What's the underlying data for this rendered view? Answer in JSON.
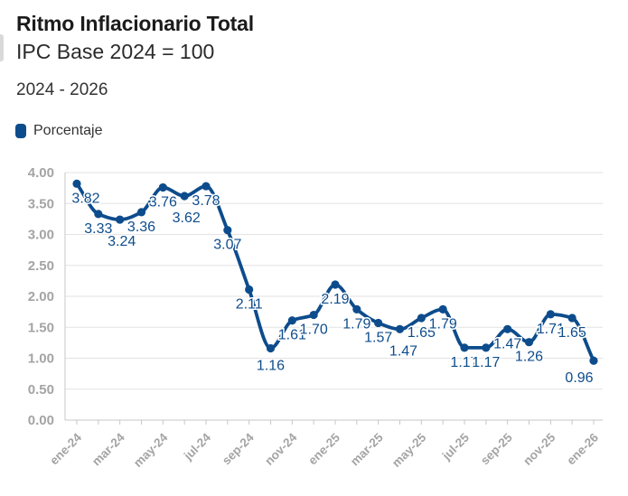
{
  "header": {
    "title": "Ritmo Inflacionario Total",
    "subtitle": "IPC Base 2024 = 100",
    "period": "2024 - 2026"
  },
  "legend": {
    "items": [
      {
        "label": "Porcentaje",
        "swatch_color": "#0d4c8c"
      }
    ]
  },
  "colors": {
    "accent": "#0d4c8c",
    "axis_text": "#a4a4a4",
    "grid": "#e4e2e2",
    "title_text": "#1b1b1b"
  },
  "chart_data": {
    "type": "line",
    "title": "Ritmo Inflacionario Total",
    "subtitle": "IPC Base 2024 = 100",
    "series_name": "Porcentaje",
    "x": [
      "ene-24",
      "feb-24",
      "mar-24",
      "abr-24",
      "may-24",
      "jun-24",
      "jul-24",
      "ago-24",
      "sep-24",
      "oct-24",
      "nov-24",
      "dic-24",
      "ene-25",
      "feb-25",
      "mar-25",
      "abr-25",
      "may-25",
      "jun-25",
      "jul-25",
      "ago-25",
      "sep-25",
      "oct-25",
      "nov-25",
      "dic-25",
      "ene-26"
    ],
    "values": [
      3.82,
      3.33,
      3.24,
      3.36,
      3.76,
      3.62,
      3.78,
      3.07,
      2.11,
      1.16,
      1.61,
      1.7,
      2.19,
      1.79,
      1.57,
      1.47,
      1.65,
      1.79,
      1.17,
      1.17,
      1.47,
      1.26,
      1.71,
      1.65,
      0.96
    ],
    "point_labels": [
      "3.82",
      "3.33",
      "3.24",
      "3.36",
      "3.76",
      "3.62",
      "3.78",
      "3.07",
      "2.11",
      "1.16",
      "1.61",
      "1.70",
      "2.19",
      "1.79",
      "1.57",
      "1.47",
      "1.65",
      "1.79",
      "1.17",
      "1.17",
      "1.47",
      "1.26",
      "1.71",
      "1.65",
      "0.96"
    ],
    "x_ticks_labeled": [
      "ene-24",
      "mar-24",
      "may-24",
      "jul-24",
      "sep-24",
      "nov-24",
      "ene-25",
      "mar-25",
      "may-25",
      "jul-25",
      "sep-25",
      "nov-25",
      "ene-26"
    ],
    "ytick_labels": [
      "0.00",
      "0.50",
      "1.00",
      "1.50",
      "2.00",
      "2.50",
      "3.00",
      "3.50",
      "4.00"
    ],
    "ylim": [
      0,
      4
    ],
    "ytick_step": 0.5,
    "grid": true,
    "legend_position": "top-left",
    "line_color": "#0d4c8c",
    "curve": "monotone"
  }
}
